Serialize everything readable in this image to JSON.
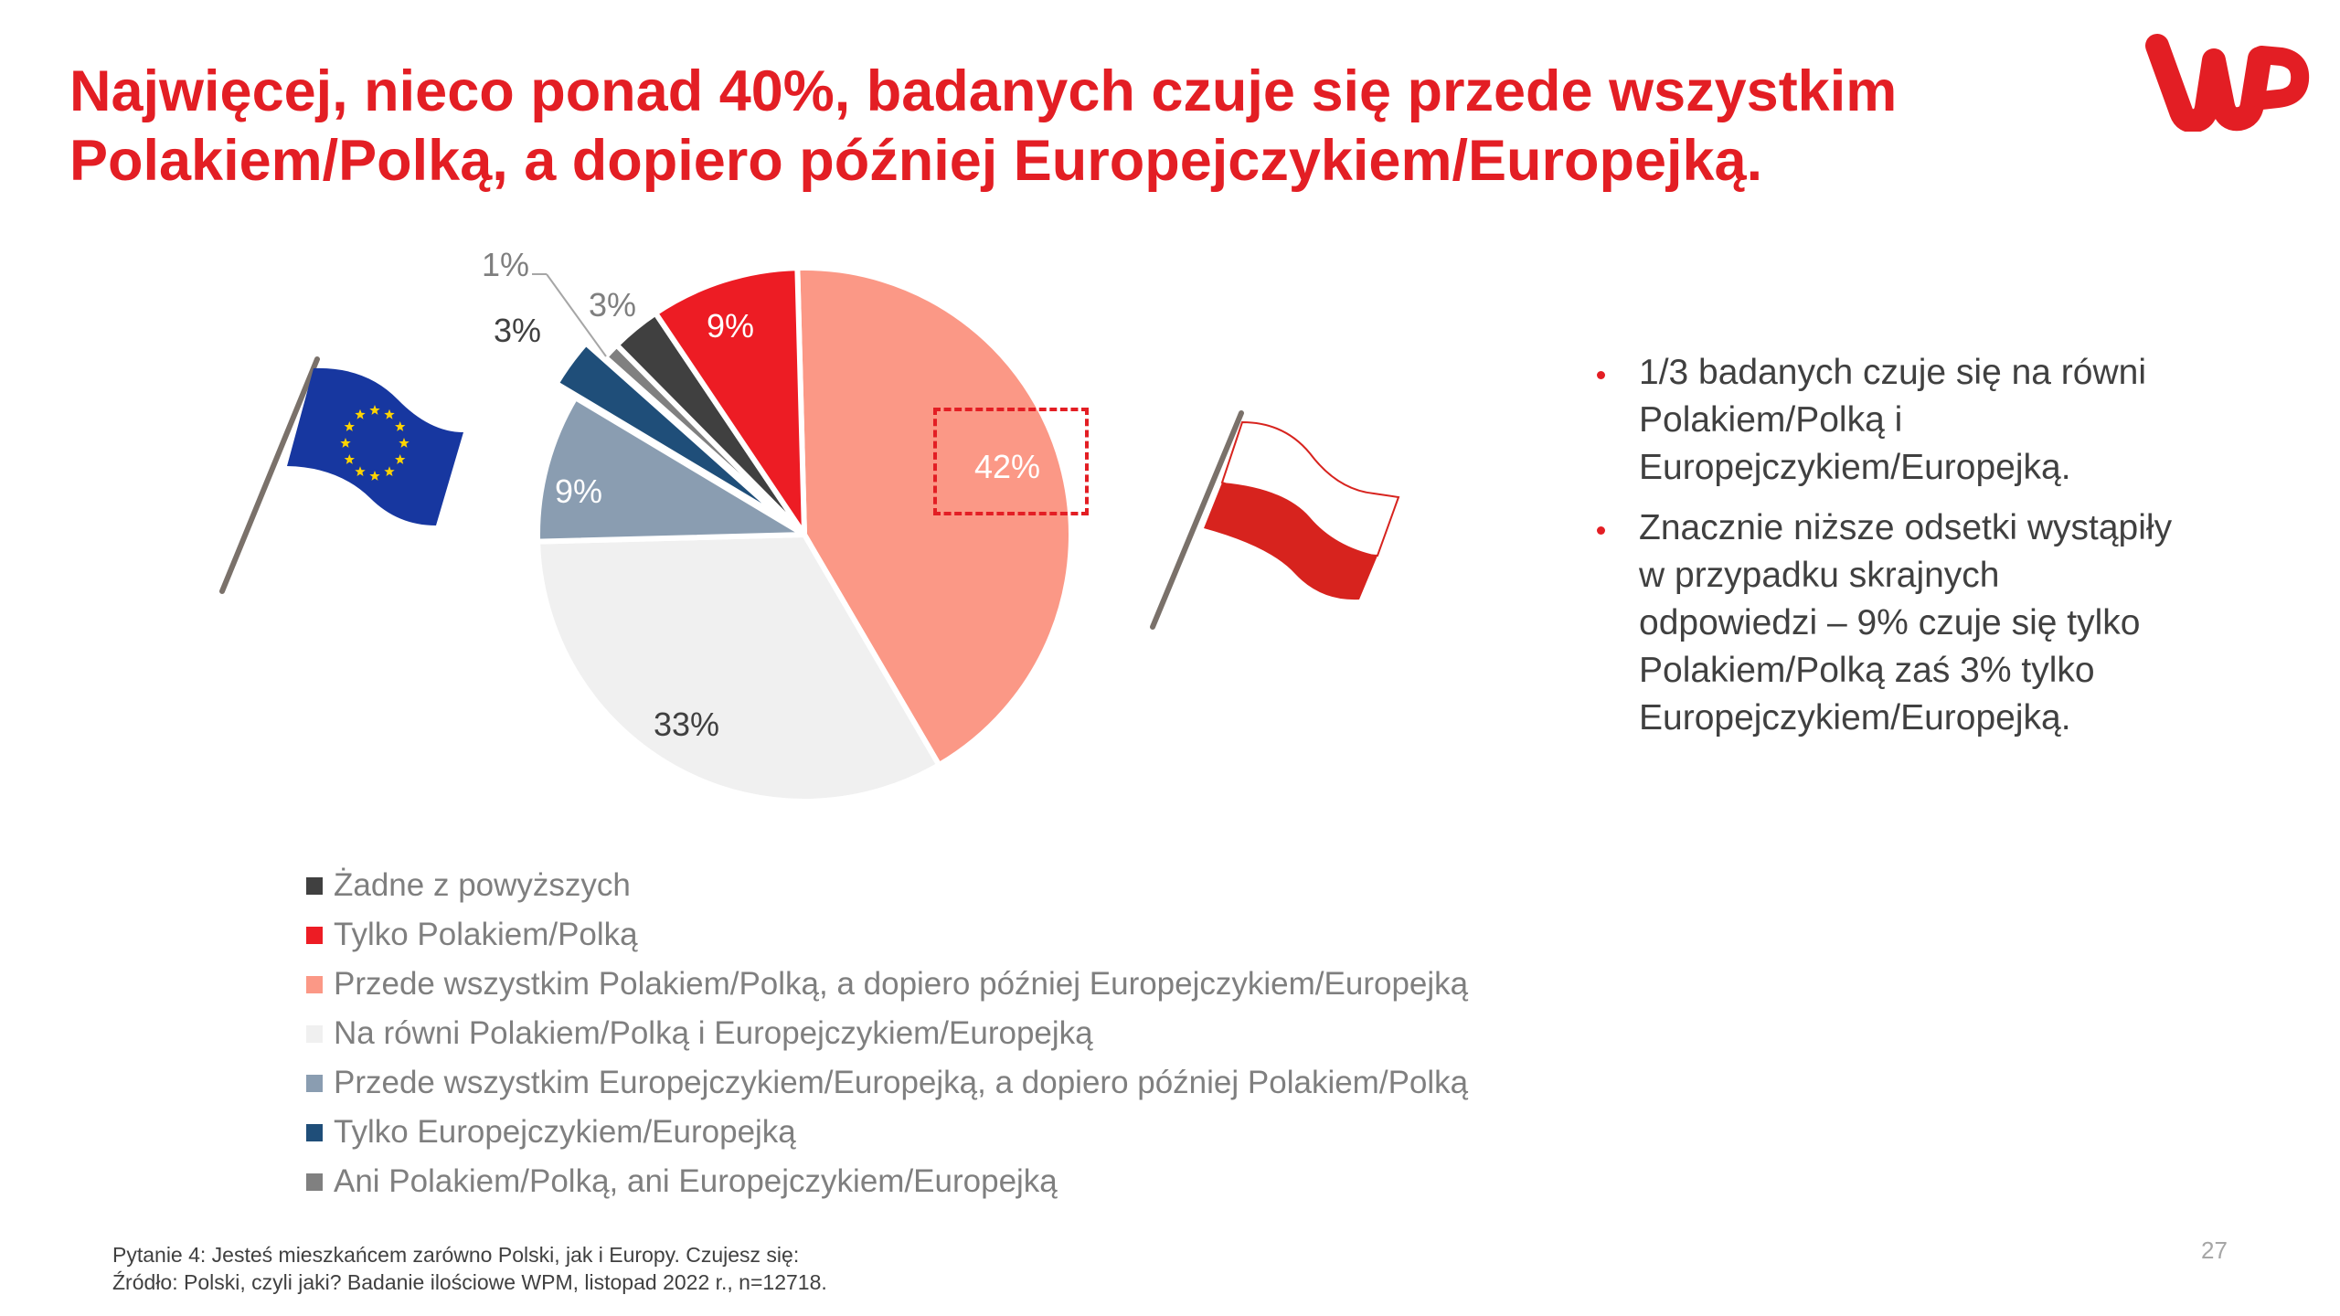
{
  "slide": {
    "title_lines": [
      "Najwięcej, nieco ponad 40%, badanych czuje się przede wszystkim",
      "Polakiem/Polką, a dopiero później Europejczykiem/Europejką."
    ],
    "logo": "wp-logo",
    "page_number": "27",
    "colors": {
      "accent": "#E31E24",
      "text": "#404040",
      "legend_text": "#7F7F7F"
    }
  },
  "bullets": [
    "1/3 badanych czuje się na równi Polakiem/Polką i Europejczykiem/Europejką.",
    "Znacznie niższe odsetki wystąpiły w przypadku skrajnych odpowiedzi – 9% czuje się tylko Polakiem/Polką zaś 3% tylko Europejczykiem/Europejką."
  ],
  "footer": {
    "question": "Pytanie 4: Jesteś mieszkańcem zarówno Polski, jak i Europy. Czujesz się:",
    "source": "Źródło: Polski, czyli jaki? Badanie ilościowe WPM, listopad 2022 r., n=12718."
  },
  "decorations": {
    "left_flag": "eu-flag-icon",
    "right_flag": "poland-flag-icon"
  },
  "chart_data": {
    "type": "pie",
    "title": "",
    "highlighted_category": "Przede wszystkim Polakiem/Polką, a dopiero później Europejczykiem/Europejką",
    "start_angle_deg": -1.5,
    "direction": "clockwise",
    "legend_position": "bottom",
    "slices": [
      {
        "label": "Przede wszystkim Polakiem/Polką, a dopiero później Europejczykiem/Europejką",
        "value": 42,
        "display": "42%",
        "color": "#FB9886",
        "label_color": "#FFFFFF",
        "exploded": false
      },
      {
        "label": "Na równi Polakiem/Polką i Europejczykiem/Europejką",
        "value": 33,
        "display": "33%",
        "color": "#F0F0F0",
        "label_color": "#404040",
        "exploded": false
      },
      {
        "label": "Przede wszystkim Europejczykiem/Europejką, a dopiero później Polakiem/Polką",
        "value": 9,
        "display": "9%",
        "color": "#8A9DB1",
        "label_color": "#FFFFFF",
        "exploded": false
      },
      {
        "label": "Tylko Europejczykiem/Europejką",
        "value": 3,
        "display": "3%",
        "color": "#1F4E79",
        "label_color": "#404040",
        "exploded": true
      },
      {
        "label": "Ani Polakiem/Polką, ani Europejczykiem/Europejką",
        "value": 1,
        "display": "1%",
        "color": "#808080",
        "label_color": "#7F7F7F",
        "exploded": false
      },
      {
        "label": "Żadne z powyższych",
        "value": 3,
        "display": "3%",
        "color": "#404040",
        "label_color": "#7F7F7F",
        "exploded": false
      },
      {
        "label": "Tylko Polakiem/Polką",
        "value": 9,
        "display": "9%",
        "color": "#ED1C24",
        "label_color": "#FFFFFF",
        "exploded": false
      }
    ],
    "legend": [
      {
        "label": "Żadne z powyższych",
        "color": "#404040"
      },
      {
        "label": "Tylko Polakiem/Polką",
        "color": "#ED1C24"
      },
      {
        "label": "Przede wszystkim Polakiem/Polką, a dopiero później Europejczykiem/Europejką",
        "color": "#FB9886"
      },
      {
        "label": "Na równi Polakiem/Polką i Europejczykiem/Europejką",
        "color": "#F0F0F0"
      },
      {
        "label": "Przede wszystkim Europejczykiem/Europejką, a dopiero później Polakiem/Polką",
        "color": "#8A9DB1"
      },
      {
        "label": "Tylko Europejczykiem/Europejką",
        "color": "#1F4E79"
      },
      {
        "label": "Ani Polakiem/Polką, ani Europejczykiem/Europejką",
        "color": "#808080"
      }
    ]
  }
}
